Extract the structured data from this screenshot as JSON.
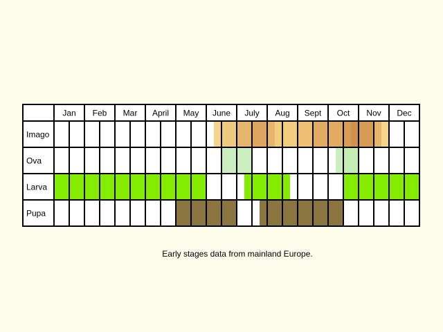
{
  "caption": "Early stages data from mainland Europe.",
  "chart_data": {
    "type": "table",
    "title": "",
    "columns_per_month": 2,
    "months": [
      "Jan",
      "Feb",
      "Mar",
      "Apr",
      "May",
      "June",
      "July",
      "Aug",
      "Sept",
      "Oct",
      "Nov",
      "Dec"
    ],
    "month_labels": [
      "Jan",
      "Feb",
      "Mar",
      "April",
      "May",
      "June",
      "July",
      "Aug",
      "Sept",
      "Oct",
      "Nov",
      "Dec"
    ],
    "stages": [
      {
        "name": "Imago",
        "periods": [
          {
            "from_month": 5.25,
            "to_month": 5.5,
            "color": "#f6d48b"
          },
          {
            "from_month": 5.5,
            "to_month": 6.0,
            "color": "#f0c980"
          },
          {
            "from_month": 6.0,
            "to_month": 6.5,
            "color": "#e6b56d"
          },
          {
            "from_month": 6.5,
            "to_month": 7.0,
            "color": "#dea561"
          },
          {
            "from_month": 7.0,
            "to_month": 7.25,
            "color": "#e6b56d"
          },
          {
            "from_month": 7.25,
            "to_month": 8.0,
            "color": "#f2cd80"
          },
          {
            "from_month": 8.0,
            "to_month": 8.5,
            "color": "#eebf74"
          },
          {
            "from_month": 8.5,
            "to_month": 9.5,
            "color": "#e2ab62"
          },
          {
            "from_month": 9.5,
            "to_month": 9.75,
            "color": "#d89c55"
          },
          {
            "from_month": 9.75,
            "to_month": 10.0,
            "color": "#cf914b"
          },
          {
            "from_month": 10.0,
            "to_month": 10.5,
            "color": "#d79b55"
          },
          {
            "from_month": 10.5,
            "to_month": 10.75,
            "color": "#e6b56d"
          },
          {
            "from_month": 10.75,
            "to_month": 11.0,
            "color": "#f6d48b"
          }
        ]
      },
      {
        "name": "Ova",
        "periods": [
          {
            "from_month": 5.5,
            "to_month": 6.5,
            "color": "#cdeec0"
          },
          {
            "from_month": 9.25,
            "to_month": 9.5,
            "color": "#cdeec0"
          },
          {
            "from_month": 9.5,
            "to_month": 10.0,
            "color": "#c4edb4"
          }
        ]
      },
      {
        "name": "Larva",
        "periods": [
          {
            "from_month": 0.0,
            "to_month": 5.0,
            "color": "#84ec00"
          },
          {
            "from_month": 6.25,
            "to_month": 7.75,
            "color": "#84ec00"
          },
          {
            "from_month": 9.5,
            "to_month": 12.0,
            "color": "#84ec00"
          }
        ]
      },
      {
        "name": "Pupa",
        "periods": [
          {
            "from_month": 4.0,
            "to_month": 6.0,
            "color": "#8a7440"
          },
          {
            "from_month": 6.75,
            "to_month": 9.5,
            "color": "#8a7440"
          }
        ]
      }
    ]
  }
}
